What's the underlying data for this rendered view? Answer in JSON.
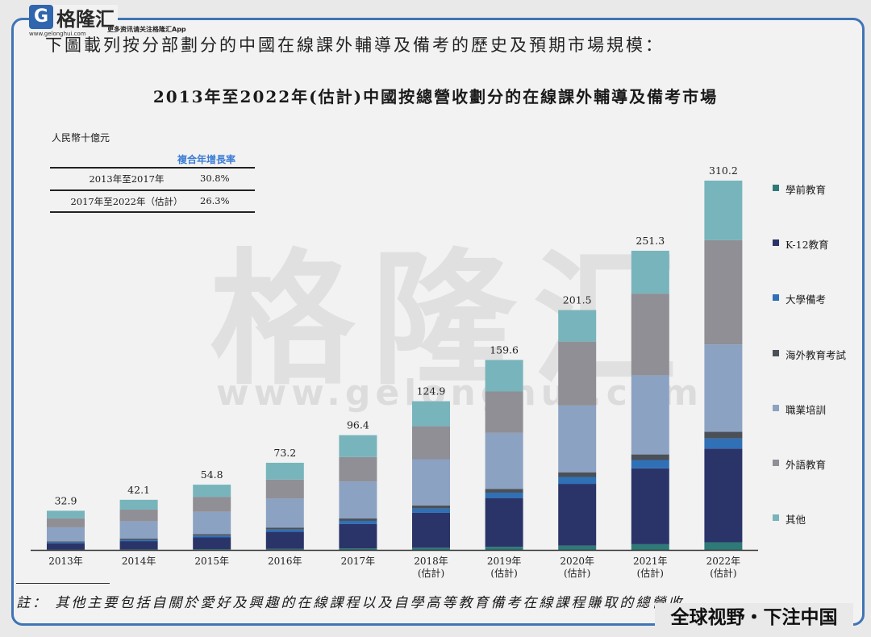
{
  "logo": {
    "mark": "G",
    "name": "格隆汇",
    "site": "www.gelonghui.com",
    "tagline": "更多资讯请关注格隆汇App"
  },
  "intro": "下圖載列按分部劃分的中國在線課外輔導及備考的歷史及預期市場規模：",
  "watermark": {
    "brand": "格隆汇",
    "url": "www.gelonghui.com"
  },
  "cagr": {
    "header": "複合年增長率",
    "rows": [
      {
        "period": "2013年至2017年",
        "rate": "30.8%"
      },
      {
        "period": "2017年至2022年（估計）",
        "rate": "26.3%"
      }
    ]
  },
  "footnote": "註：  其他主要包括自關於愛好及興趣的在線課程以及自學高等教育備考在線課程賺取的總營收。",
  "banner": "全球视野・下注中国",
  "chart_data": {
    "type": "bar",
    "stacked": true,
    "title": "2013年至2022年(估計)中國按總營收劃分的在線課外輔導及備考市場",
    "ylabel": "人民幣十億元",
    "xlabel": "",
    "ylim": [
      0,
      310.2
    ],
    "grid": false,
    "legend_position": "right",
    "categories": [
      "2013年",
      "2014年",
      "2015年",
      "2016年",
      "2017年",
      "2018年",
      "2019年",
      "2020年",
      "2021年",
      "2022年"
    ],
    "category_sublabels": [
      "",
      "",
      "",
      "",
      "",
      "(估計)",
      "(估計)",
      "(估計)",
      "(估計)",
      "(估計)"
    ],
    "totals": [
      32.9,
      42.1,
      54.8,
      73.2,
      96.4,
      124.9,
      159.6,
      201.5,
      251.3,
      310.2
    ],
    "total_labels": [
      "32.9",
      "42.1",
      "54.8",
      "73.2",
      "96.4",
      "124.9",
      "159.6",
      "201.5",
      "251.3",
      "310.2"
    ],
    "series": [
      {
        "name": "學前教育",
        "color": "#2e7a78",
        "values": [
          0.3,
          0.4,
          0.6,
          0.8,
          1.2,
          1.8,
          2.6,
          3.6,
          4.8,
          6.4
        ]
      },
      {
        "name": "K-12教育",
        "color": "#2b3468",
        "values": [
          5.2,
          7.0,
          9.9,
          14.4,
          20.5,
          29.4,
          41.0,
          51.9,
          63.7,
          78.7
        ]
      },
      {
        "name": "大學備考",
        "color": "#2f70b6",
        "values": [
          0.9,
          1.1,
          1.5,
          2.0,
          2.7,
          3.6,
          4.5,
          5.8,
          7.0,
          8.5
        ]
      },
      {
        "name": "海外教育考試",
        "color": "#4b5058",
        "values": [
          0.8,
          1.0,
          1.3,
          1.6,
          2.0,
          2.6,
          3.2,
          3.9,
          4.7,
          5.6
        ]
      },
      {
        "name": "職業培訓",
        "color": "#8ca2c2",
        "values": [
          11.8,
          14.6,
          18.7,
          24.3,
          31.1,
          38.8,
          47.0,
          56.1,
          66.5,
          73.4
        ]
      },
      {
        "name": "外語教育",
        "color": "#8f8f95",
        "values": [
          7.6,
          9.8,
          12.6,
          16.0,
          20.5,
          27.7,
          34.8,
          53.7,
          68.6,
          87.6
        ]
      },
      {
        "name": "其他",
        "color": "#78b4bb",
        "values": [
          6.3,
          8.2,
          10.2,
          14.1,
          18.4,
          21.0,
          26.5,
          26.5,
          36.0,
          50.0
        ]
      }
    ]
  }
}
